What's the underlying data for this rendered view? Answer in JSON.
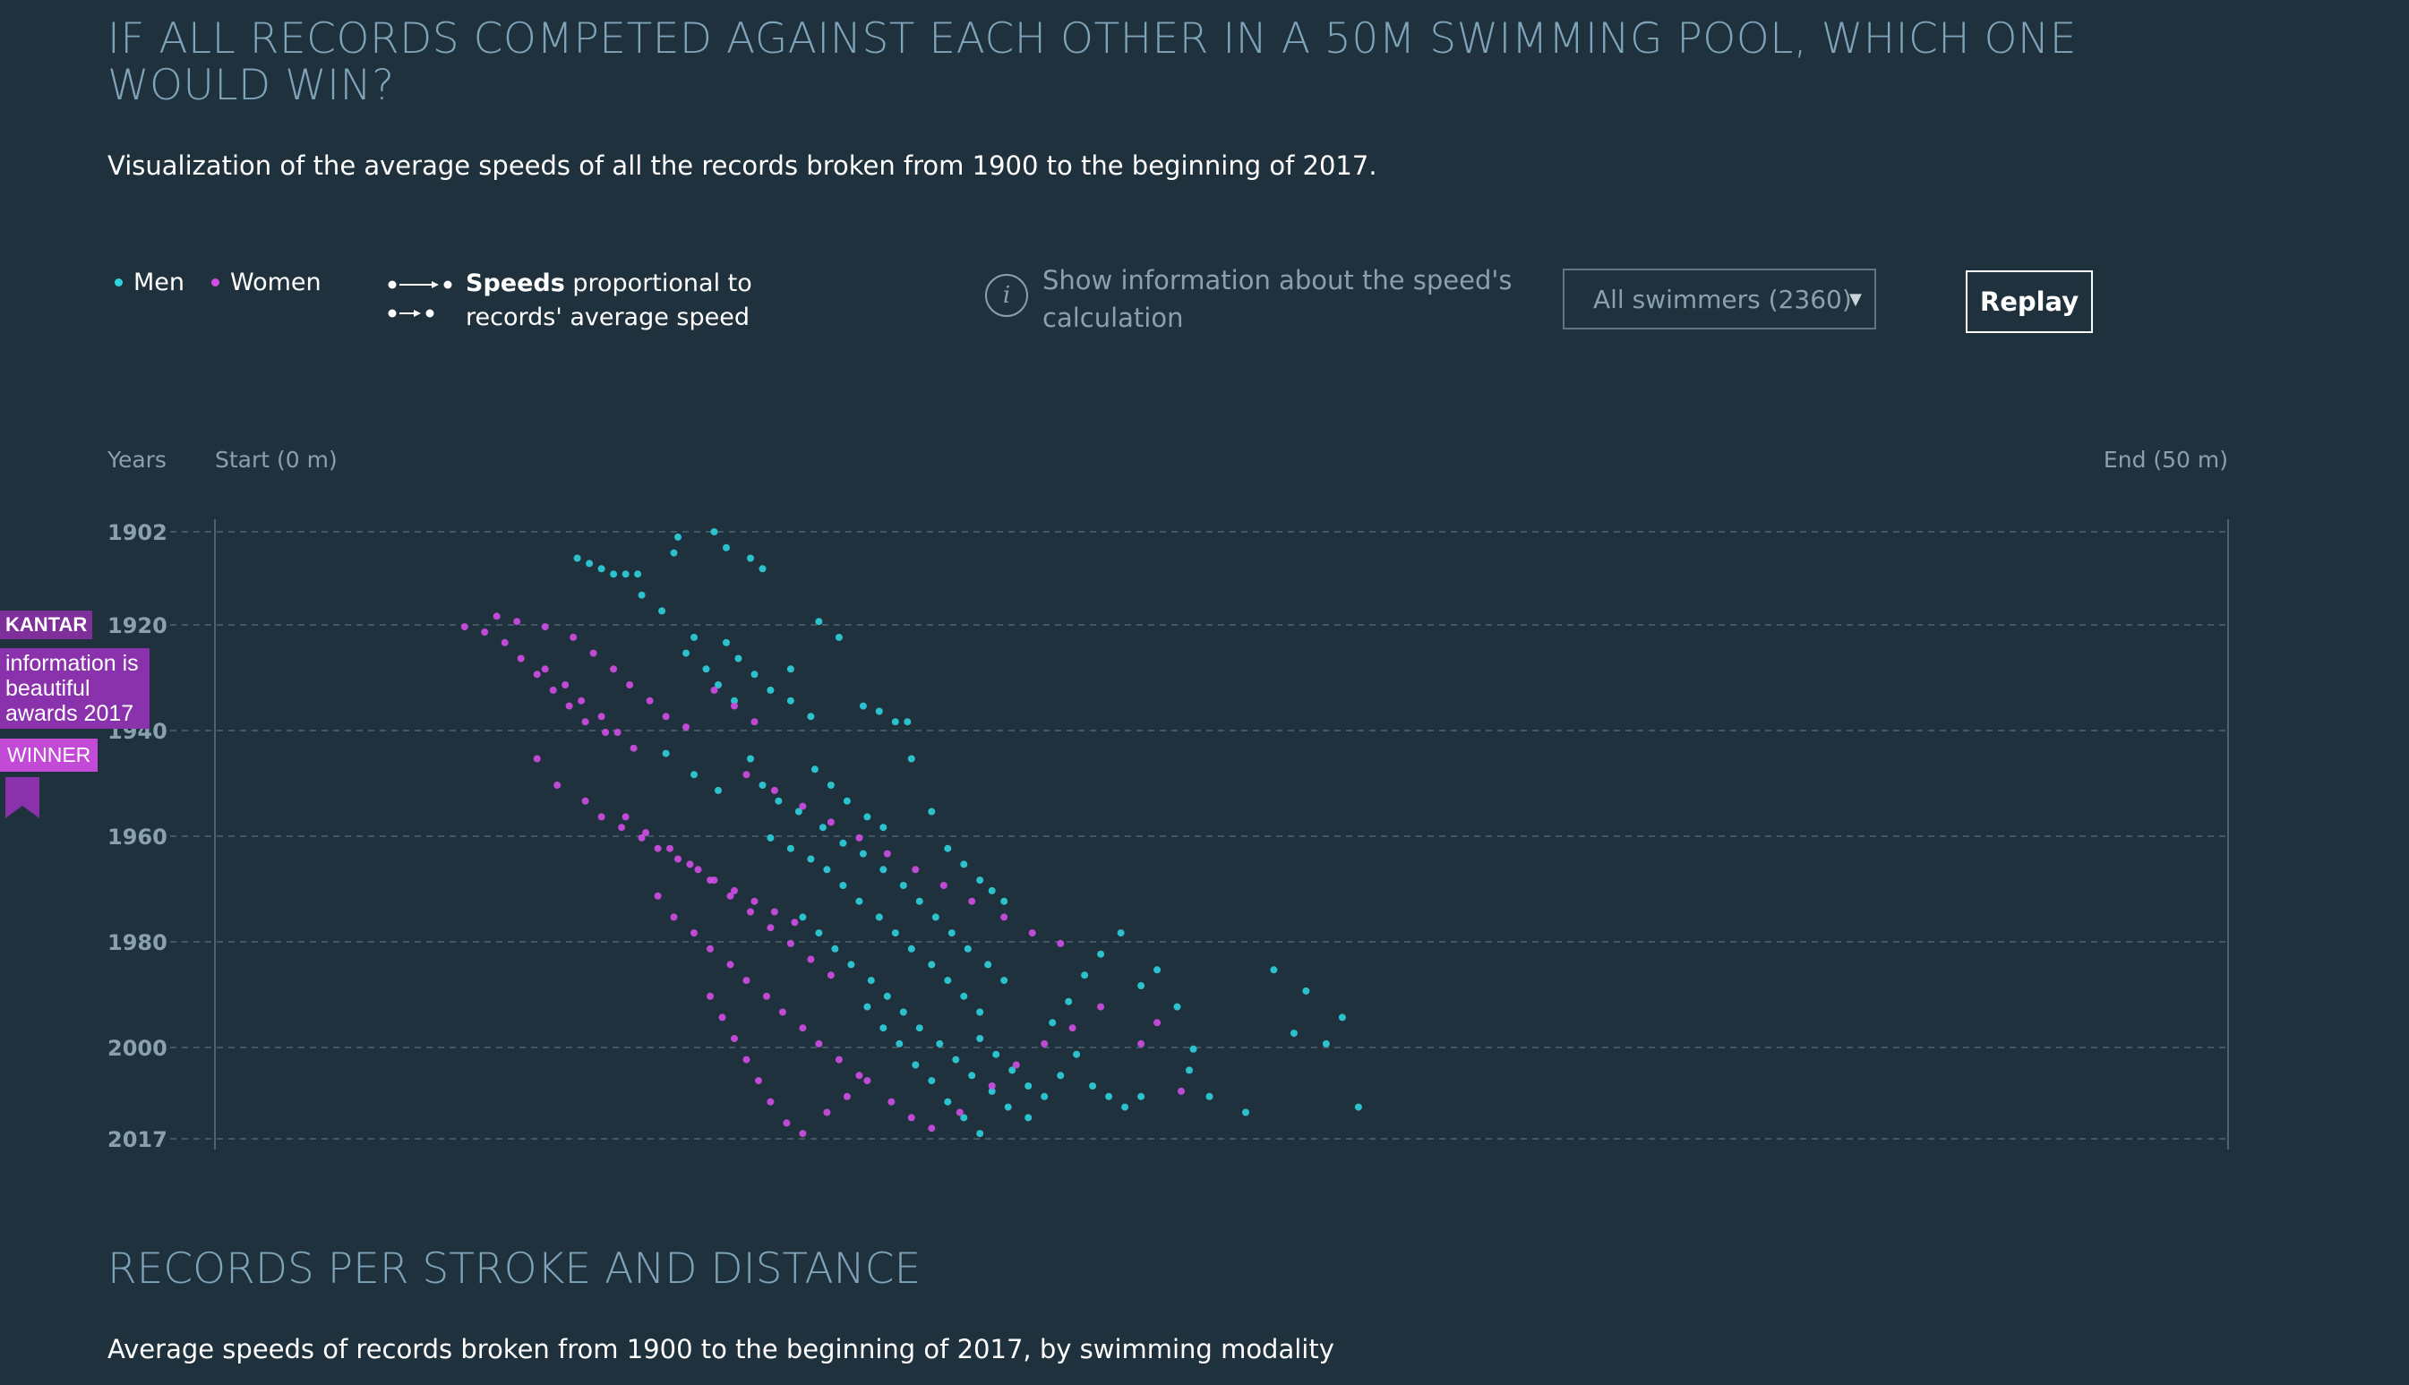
{
  "header": {
    "title": "IF ALL RECORDS COMPETED AGAINST EACH OTHER IN A 50M SWIMMING POOL, WHICH ONE WOULD WIN?",
    "subtitle": "Visualization of the average speeds of all the records broken from 1900 to the beginning of 2017."
  },
  "legend": {
    "men_label": "Men",
    "women_label": "Women",
    "speed_bold": "Speeds",
    "speed_rest_1": " proportional to",
    "speed_rest_2": "records' average speed"
  },
  "controls": {
    "info_text": "Show information about the speed's calculation",
    "info_icon": "info-icon",
    "filter_value": "All swimmers (2360)",
    "replay_label": "Replay"
  },
  "colors": {
    "background": "#1f313c",
    "men": "#2ed3dd",
    "women": "#d24ee6",
    "title": "#7fa3b8",
    "muted": "#8aa0ad"
  },
  "badge": {
    "kantar": "KANTAR",
    "line1": "information is",
    "line2": "beautiful",
    "line3": "awards 2017",
    "winner": "WINNER",
    "icon": "ribbon-icon"
  },
  "chart_data": {
    "type": "scatter",
    "xlabel_start": "Start (0 m)",
    "xlabel_end": "End (50 m)",
    "ylabel": "Years",
    "y_ticks": [
      "1902",
      "1920",
      "1940",
      "1960",
      "1980",
      "2000",
      "2017"
    ],
    "xlim": [
      0,
      50
    ],
    "ylim": [
      1902,
      2017
    ],
    "grid": true,
    "series": [
      {
        "name": "Men",
        "color": "#2ed3dd",
        "points": [
          [
            9.0,
            1907
          ],
          [
            9.3,
            1908
          ],
          [
            9.6,
            1909
          ],
          [
            9.9,
            1910
          ],
          [
            10.2,
            1910
          ],
          [
            10.5,
            1910
          ],
          [
            11.4,
            1906
          ],
          [
            11.5,
            1903
          ],
          [
            12.4,
            1902
          ],
          [
            12.7,
            1905
          ],
          [
            13.3,
            1907
          ],
          [
            13.6,
            1909
          ],
          [
            10.6,
            1914
          ],
          [
            11.1,
            1917
          ],
          [
            11.9,
            1922
          ],
          [
            12.7,
            1923
          ],
          [
            13.0,
            1926
          ],
          [
            13.4,
            1929
          ],
          [
            14.3,
            1928
          ],
          [
            15.0,
            1919
          ],
          [
            15.5,
            1922
          ],
          [
            16.1,
            1935
          ],
          [
            16.5,
            1936
          ],
          [
            16.9,
            1938
          ],
          [
            17.2,
            1938
          ],
          [
            11.7,
            1925
          ],
          [
            12.2,
            1928
          ],
          [
            12.5,
            1931
          ],
          [
            12.9,
            1934
          ],
          [
            13.8,
            1932
          ],
          [
            14.3,
            1934
          ],
          [
            14.8,
            1937
          ],
          [
            11.2,
            1944
          ],
          [
            11.9,
            1948
          ],
          [
            12.5,
            1951
          ],
          [
            13.3,
            1945
          ],
          [
            13.6,
            1950
          ],
          [
            14.0,
            1953
          ],
          [
            14.5,
            1955
          ],
          [
            14.9,
            1947
          ],
          [
            15.3,
            1950
          ],
          [
            15.7,
            1953
          ],
          [
            16.2,
            1956
          ],
          [
            16.6,
            1958
          ],
          [
            17.3,
            1945
          ],
          [
            17.8,
            1955
          ],
          [
            18.2,
            1962
          ],
          [
            18.6,
            1965
          ],
          [
            19.0,
            1968
          ],
          [
            19.3,
            1970
          ],
          [
            19.6,
            1972
          ],
          [
            15.1,
            1958
          ],
          [
            15.6,
            1961
          ],
          [
            16.1,
            1963
          ],
          [
            16.6,
            1966
          ],
          [
            17.1,
            1969
          ],
          [
            17.5,
            1972
          ],
          [
            17.9,
            1975
          ],
          [
            18.3,
            1978
          ],
          [
            18.7,
            1981
          ],
          [
            19.2,
            1984
          ],
          [
            19.6,
            1987
          ],
          [
            13.8,
            1960
          ],
          [
            14.3,
            1962
          ],
          [
            14.8,
            1964
          ],
          [
            15.2,
            1966
          ],
          [
            15.6,
            1969
          ],
          [
            16.0,
            1972
          ],
          [
            16.5,
            1975
          ],
          [
            16.9,
            1978
          ],
          [
            17.3,
            1981
          ],
          [
            17.8,
            1984
          ],
          [
            18.2,
            1987
          ],
          [
            18.6,
            1990
          ],
          [
            19.0,
            1993
          ],
          [
            14.6,
            1975
          ],
          [
            15.0,
            1978
          ],
          [
            15.4,
            1981
          ],
          [
            15.8,
            1984
          ],
          [
            16.3,
            1987
          ],
          [
            16.7,
            1990
          ],
          [
            17.1,
            1993
          ],
          [
            17.5,
            1996
          ],
          [
            18.0,
            1999
          ],
          [
            18.4,
            2002
          ],
          [
            18.8,
            2005
          ],
          [
            19.3,
            2008
          ],
          [
            19.7,
            2011
          ],
          [
            20.2,
            2013
          ],
          [
            20.6,
            2009
          ],
          [
            21.0,
            2005
          ],
          [
            21.4,
            2001
          ],
          [
            21.8,
            2007
          ],
          [
            22.2,
            2009
          ],
          [
            22.6,
            2011
          ],
          [
            23.0,
            2009
          ],
          [
            24.2,
            2004
          ],
          [
            24.7,
            2009
          ],
          [
            25.6,
            2012
          ],
          [
            26.3,
            1985
          ],
          [
            26.8,
            1997
          ],
          [
            27.1,
            1989
          ],
          [
            27.6,
            1999
          ],
          [
            28.0,
            1994
          ],
          [
            28.4,
            2011
          ],
          [
            20.8,
            1995
          ],
          [
            21.2,
            1991
          ],
          [
            21.6,
            1986
          ],
          [
            22.0,
            1982
          ],
          [
            22.5,
            1978
          ],
          [
            23.0,
            1988
          ],
          [
            23.4,
            1985
          ],
          [
            23.9,
            1992
          ],
          [
            24.3,
            2000
          ],
          [
            19.0,
            1998
          ],
          [
            19.4,
            2001
          ],
          [
            19.8,
            2004
          ],
          [
            20.2,
            2007
          ],
          [
            16.2,
            1992
          ],
          [
            16.6,
            1996
          ],
          [
            17.0,
            1999
          ],
          [
            17.4,
            2003
          ],
          [
            17.8,
            2006
          ],
          [
            18.2,
            2010
          ],
          [
            18.6,
            2013
          ],
          [
            19.0,
            2016
          ]
        ]
      },
      {
        "name": "Women",
        "color": "#d24ee6",
        "points": [
          [
            6.2,
            1920
          ],
          [
            6.7,
            1921
          ],
          [
            7.2,
            1923
          ],
          [
            7.6,
            1926
          ],
          [
            8.0,
            1929
          ],
          [
            8.4,
            1932
          ],
          [
            8.8,
            1935
          ],
          [
            9.2,
            1938
          ],
          [
            9.7,
            1940
          ],
          [
            7.0,
            1918
          ],
          [
            7.5,
            1919
          ],
          [
            8.2,
            1920
          ],
          [
            8.9,
            1922
          ],
          [
            9.4,
            1925
          ],
          [
            9.9,
            1928
          ],
          [
            10.3,
            1931
          ],
          [
            10.8,
            1934
          ],
          [
            11.2,
            1937
          ],
          [
            11.7,
            1939
          ],
          [
            12.4,
            1932
          ],
          [
            12.9,
            1935
          ],
          [
            13.4,
            1938
          ],
          [
            8.2,
            1928
          ],
          [
            8.7,
            1931
          ],
          [
            9.1,
            1934
          ],
          [
            9.6,
            1937
          ],
          [
            10.0,
            1940
          ],
          [
            10.4,
            1943
          ],
          [
            8.0,
            1945
          ],
          [
            8.5,
            1950
          ],
          [
            9.2,
            1953
          ],
          [
            9.6,
            1956
          ],
          [
            10.1,
            1958
          ],
          [
            10.6,
            1960
          ],
          [
            11.0,
            1962
          ],
          [
            11.5,
            1964
          ],
          [
            12.0,
            1966
          ],
          [
            12.4,
            1968
          ],
          [
            12.9,
            1970
          ],
          [
            13.4,
            1972
          ],
          [
            13.9,
            1974
          ],
          [
            14.4,
            1976
          ],
          [
            10.2,
            1956
          ],
          [
            10.7,
            1959
          ],
          [
            11.3,
            1962
          ],
          [
            11.8,
            1965
          ],
          [
            12.3,
            1968
          ],
          [
            12.8,
            1971
          ],
          [
            13.3,
            1974
          ],
          [
            13.8,
            1977
          ],
          [
            14.3,
            1980
          ],
          [
            14.8,
            1983
          ],
          [
            15.3,
            1986
          ],
          [
            11.0,
            1971
          ],
          [
            11.4,
            1975
          ],
          [
            11.9,
            1978
          ],
          [
            12.3,
            1981
          ],
          [
            12.8,
            1984
          ],
          [
            13.2,
            1987
          ],
          [
            13.7,
            1990
          ],
          [
            14.1,
            1993
          ],
          [
            14.6,
            1996
          ],
          [
            15.0,
            1999
          ],
          [
            15.5,
            2002
          ],
          [
            16.0,
            2005
          ],
          [
            12.3,
            1990
          ],
          [
            12.6,
            1994
          ],
          [
            12.9,
            1998
          ],
          [
            13.2,
            2002
          ],
          [
            13.5,
            2006
          ],
          [
            13.8,
            2010
          ],
          [
            14.2,
            2014
          ],
          [
            14.6,
            2016
          ],
          [
            15.2,
            2012
          ],
          [
            15.7,
            2009
          ],
          [
            16.2,
            2006
          ],
          [
            16.8,
            2010
          ],
          [
            17.3,
            2013
          ],
          [
            17.8,
            2015
          ],
          [
            18.5,
            2012
          ],
          [
            19.3,
            2007
          ],
          [
            19.9,
            2003
          ],
          [
            20.6,
            1999
          ],
          [
            21.3,
            1996
          ],
          [
            22.0,
            1992
          ],
          [
            23.0,
            1999
          ],
          [
            23.4,
            1995
          ],
          [
            24.0,
            2008
          ],
          [
            21.0,
            1980
          ],
          [
            20.3,
            1978
          ],
          [
            19.6,
            1975
          ],
          [
            18.8,
            1972
          ],
          [
            18.1,
            1969
          ],
          [
            17.4,
            1966
          ],
          [
            16.7,
            1963
          ],
          [
            16.0,
            1960
          ],
          [
            15.3,
            1957
          ],
          [
            14.6,
            1954
          ],
          [
            13.9,
            1951
          ],
          [
            13.2,
            1948
          ]
        ]
      }
    ]
  },
  "section2": {
    "title": "RECORDS PER STROKE AND DISTANCE",
    "subtitle": "Average speeds of records broken from 1900 to the beginning of 2017, by swimming modality"
  }
}
